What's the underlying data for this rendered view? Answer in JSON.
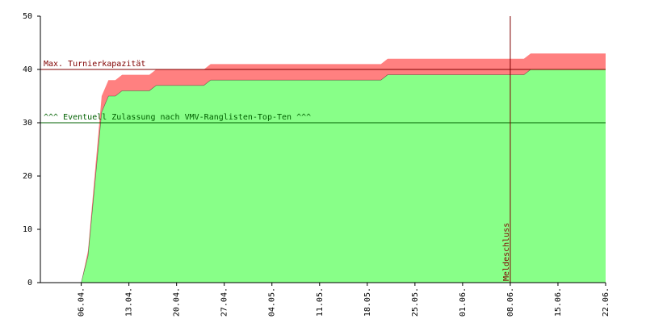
{
  "chart_data": {
    "type": "stacked-area",
    "x": [
      "31.03",
      "06.04",
      "07.04",
      "09.04",
      "10.04",
      "11.04",
      "12.04",
      "16.04",
      "17.04",
      "24.04",
      "25.04",
      "20.05",
      "21.05",
      "10.06",
      "11.06",
      "22.06"
    ],
    "series": [
      {
        "color": "#88ff88",
        "values": [
          0,
          0,
          5,
          32,
          35,
          35,
          36,
          36,
          37,
          37,
          38,
          38,
          39,
          39,
          40,
          40
        ]
      },
      {
        "color": "#ff8080",
        "values": [
          0,
          0,
          1,
          3,
          3,
          3,
          3,
          3,
          3,
          3,
          3,
          3,
          3,
          3,
          3,
          3
        ]
      }
    ],
    "xlim": [
      "31.03",
      "22.06"
    ],
    "xticks": [
      {
        "value": "06.04",
        "label": "06.04."
      },
      {
        "value": "13.04",
        "label": "13.04."
      },
      {
        "value": "20.04",
        "label": "20.04."
      },
      {
        "value": "27.04",
        "label": "27.04."
      },
      {
        "value": "04.05",
        "label": "04.05."
      },
      {
        "value": "11.05",
        "label": "11.05."
      },
      {
        "value": "18.05",
        "label": "18.05."
      },
      {
        "value": "25.05",
        "label": "25.05."
      },
      {
        "value": "01.06",
        "label": "01.06."
      },
      {
        "value": "08.06",
        "label": "08.06."
      },
      {
        "value": "15.06",
        "label": "15.06."
      },
      {
        "value": "22.06",
        "label": "22.06."
      }
    ],
    "ylim": [
      0,
      50
    ],
    "yticks": [
      0,
      10,
      20,
      30,
      40,
      50
    ],
    "hlines": [
      {
        "value": 40,
        "label": "Max. Turnierkapazität",
        "color": "#800000"
      },
      {
        "value": 30,
        "label": "^^^ Eventuell Zulassung nach VMV-Ranglisten-Top-Ten ^^^",
        "color": "#006000"
      }
    ],
    "vlines": [
      {
        "x": "08.06",
        "label": "Meldeschluss",
        "color": "#800000"
      }
    ]
  }
}
